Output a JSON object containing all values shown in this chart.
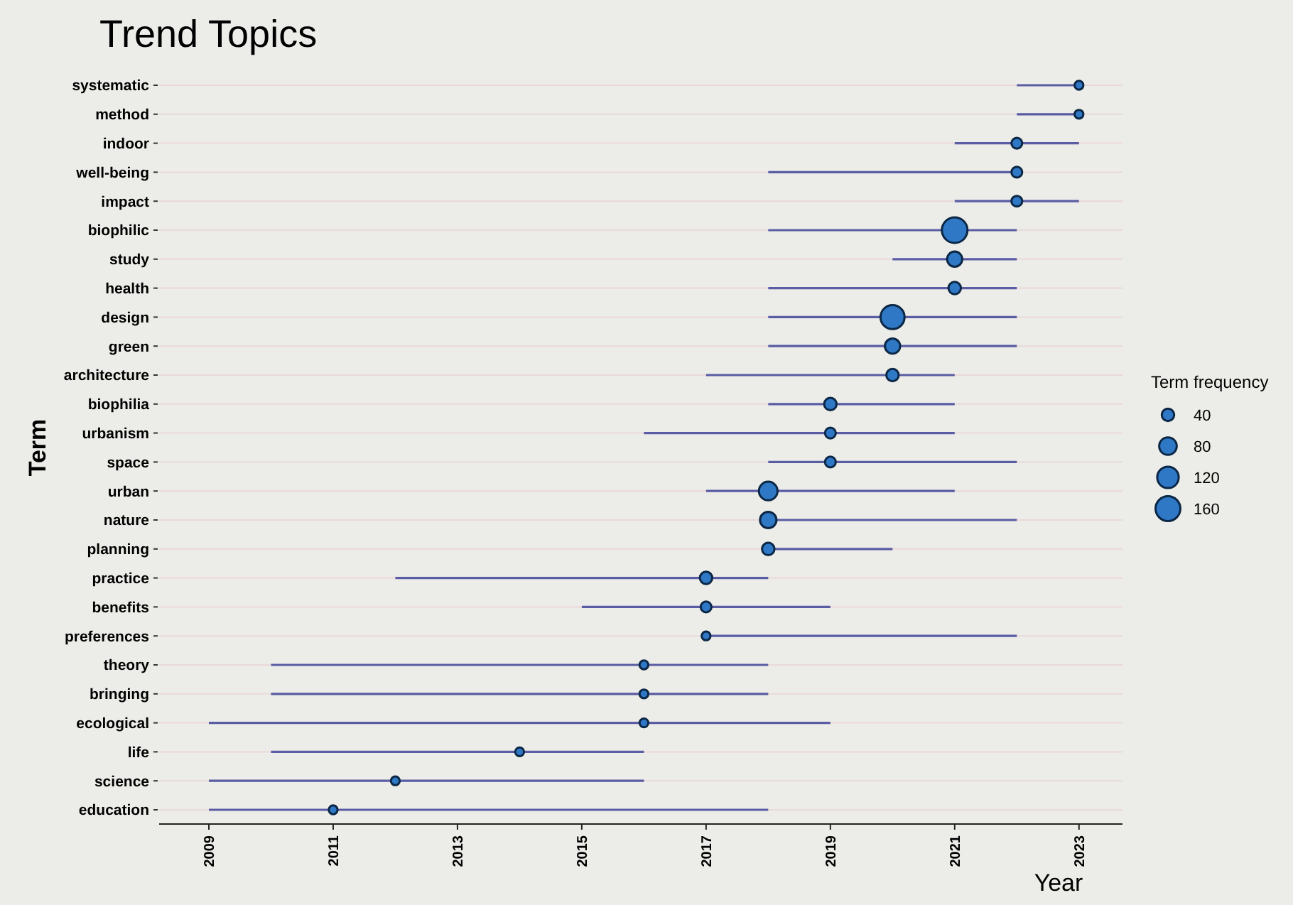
{
  "chart_data": {
    "type": "bubble",
    "orientation": "horizontal",
    "title": "Trend Topics",
    "xlabel": "Year",
    "ylabel": "Term",
    "legend_title": "Term frequency",
    "categories": [
      "systematic",
      "method",
      "indoor",
      "well-being",
      "impact",
      "biophilic",
      "study",
      "health",
      "design",
      "green",
      "architecture",
      "biophilia",
      "urbanism",
      "space",
      "urban",
      "nature",
      "planning",
      "practice",
      "benefits",
      "preferences",
      "theory",
      "bringing",
      "ecological",
      "life",
      "science",
      "education"
    ],
    "values": [
      2023,
      2023,
      2022,
      2022,
      2022,
      2021,
      2021,
      2021,
      2020,
      2020,
      2020,
      2019,
      2019,
      2019,
      2018,
      2018,
      2018,
      2017,
      2017,
      2017,
      2016,
      2016,
      2016,
      2014,
      2012,
      2011
    ],
    "errors": [
      [
        2022,
        2023
      ],
      [
        2022,
        2023
      ],
      [
        2021,
        2023
      ],
      [
        2018,
        2022
      ],
      [
        2021,
        2023
      ],
      [
        2018,
        2022
      ],
      [
        2020,
        2022
      ],
      [
        2018,
        2022
      ],
      [
        2018,
        2022
      ],
      [
        2018,
        2022
      ],
      [
        2017,
        2021
      ],
      [
        2018,
        2021
      ],
      [
        2016,
        2021
      ],
      [
        2018,
        2022
      ],
      [
        2017,
        2021
      ],
      [
        2018,
        2022
      ],
      [
        2018,
        2020
      ],
      [
        2012,
        2018
      ],
      [
        2015,
        2019
      ],
      [
        2017,
        2022
      ],
      [
        2010,
        2018
      ],
      [
        2010,
        2018
      ],
      [
        2009,
        2019
      ],
      [
        2010,
        2016
      ],
      [
        2009,
        2016
      ],
      [
        2009,
        2018
      ]
    ],
    "sizes": [
      20,
      20,
      30,
      30,
      30,
      170,
      60,
      40,
      150,
      60,
      40,
      40,
      30,
      30,
      90,
      70,
      40,
      40,
      30,
      20,
      20,
      20,
      20,
      20,
      20,
      20
    ],
    "size_legend": [
      40,
      80,
      120,
      160
    ],
    "color": "#2f78c6",
    "xlim": [
      2008.2,
      2023.7
    ],
    "xticks": [
      2009,
      2011,
      2013,
      2015,
      2017,
      2019,
      2021,
      2023
    ],
    "grid": "y",
    "marker": "circle"
  }
}
